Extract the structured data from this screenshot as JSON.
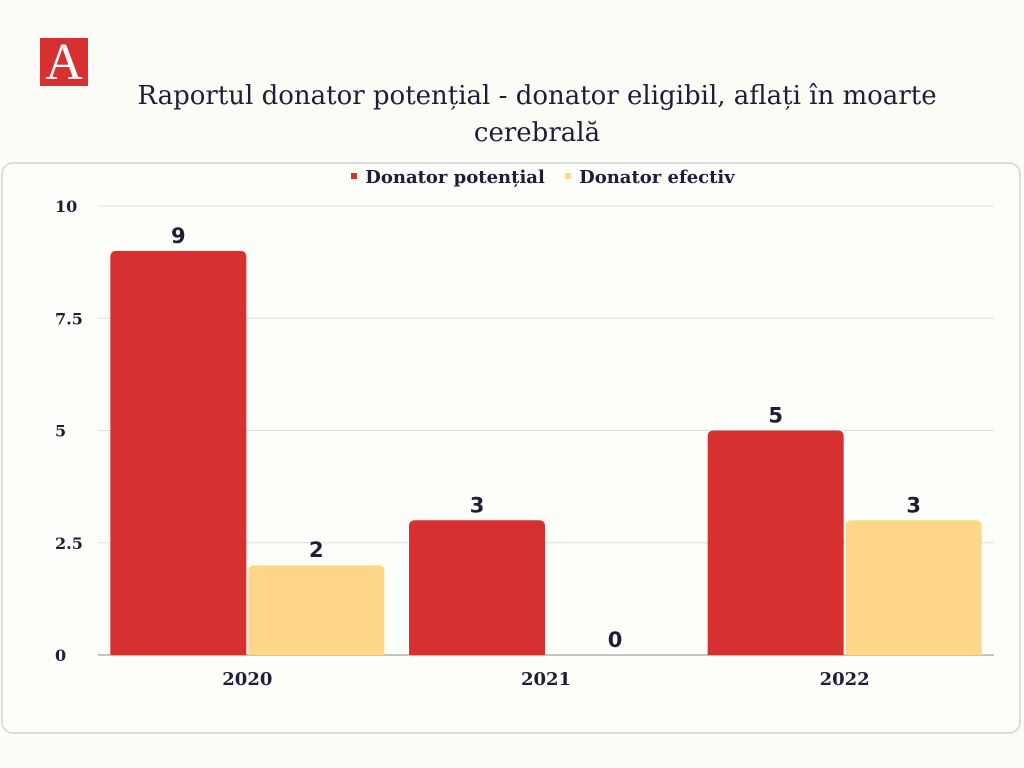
{
  "logo": {
    "text": "A",
    "color": "#d63031"
  },
  "chart_data": {
    "type": "bar",
    "title": "Raportul donator potențial - donator eligibil, aflați în moarte cerebrală",
    "categories": [
      "2020",
      "2021",
      "2022"
    ],
    "series": [
      {
        "name": "Donator potențial",
        "values": [
          9,
          3,
          5
        ],
        "color": "#d63031"
      },
      {
        "name": "Donator efectiv",
        "values": [
          2,
          0,
          3
        ],
        "color": "#fdd68a"
      }
    ],
    "yticks": [
      "0",
      "2.5",
      "5",
      "7.5",
      "10"
    ],
    "ylim": [
      0,
      10
    ],
    "grid": true,
    "legend": "top"
  }
}
